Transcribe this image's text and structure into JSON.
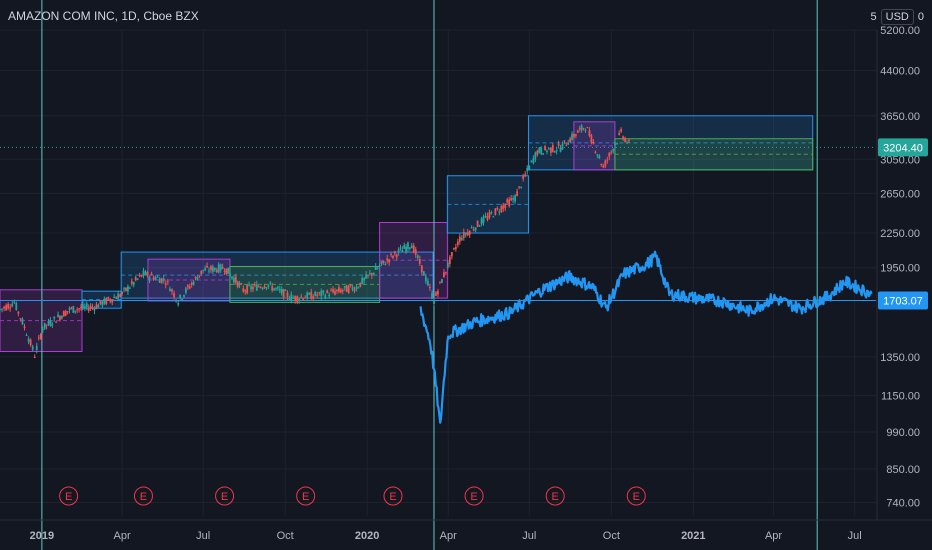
{
  "header": {
    "symbol_title": "AMAZON COM INC, 1D, Cboe BZX"
  },
  "currency": {
    "prefix": "5",
    "code": "USD",
    "suffix": "0"
  },
  "colors": {
    "background": "#131722",
    "axis_text": "#b2b5be",
    "grid": "#1e222d",
    "vline": "#5fc8c4",
    "blue_series": "#2196f3",
    "candle_up": "#26a69a",
    "candle_down": "#ef5350",
    "box_blue": "#2196f3",
    "box_purple": "#b03cd6",
    "box_green": "#4caf50",
    "box_red": "#f23645",
    "price_badge": "#26a69a",
    "level_badge": "#2196f3"
  },
  "chart_data": {
    "type": "line",
    "title": "AMAZON COM INC, 1D, Cboe BZX",
    "y_scale": "log",
    "ylim": [
      700,
      5200
    ],
    "y_ticks": [
      "5200.00",
      "4400.00",
      "3650.00",
      "3050.00",
      "2650.00",
      "2250.00",
      "1950.00",
      "1350.00",
      "1150.00",
      "990.00",
      "850.00",
      "740.00"
    ],
    "y_tick_values": [
      5200,
      4400,
      3650,
      3050,
      2650,
      2250,
      1950,
      1350,
      1150,
      990,
      850,
      740
    ],
    "x_ticks": [
      "2019",
      "Apr",
      "Jul",
      "Oct",
      "2020",
      "Apr",
      "Jul",
      "Oct",
      "2021",
      "Apr",
      "Jul"
    ],
    "x_tick_dates": [
      "2019-01-01",
      "2019-04-01",
      "2019-07-01",
      "2019-10-01",
      "2020-01-01",
      "2020-04-01",
      "2020-07-01",
      "2020-10-01",
      "2021-01-01",
      "2021-04-01",
      "2021-07-01"
    ],
    "xlim": [
      "2018-11-15",
      "2021-07-25"
    ],
    "earnings_marker_label": "E",
    "earnings_dates": [
      "2019-01-31",
      "2019-04-25",
      "2019-07-25",
      "2019-10-24",
      "2020-01-30",
      "2020-04-30",
      "2020-07-30",
      "2020-10-29"
    ],
    "vertical_lines": [
      "2019-01-01",
      "2020-03-16",
      "2021-05-20"
    ],
    "price_labels": [
      {
        "value": 3204.4,
        "text": "3204.40",
        "kind": "last_price"
      },
      {
        "value": 1703.07,
        "text": "1703.07",
        "kind": "horizontal_level"
      }
    ],
    "horizontal_level": 1703.07,
    "series": [
      {
        "kind": "candlestick",
        "points": [
          [
            "2018-11-15",
            1640
          ],
          [
            "2018-12-01",
            1690
          ],
          [
            "2018-12-24",
            1360
          ],
          [
            "2019-01-02",
            1520
          ],
          [
            "2019-02-01",
            1640
          ],
          [
            "2019-03-01",
            1660
          ],
          [
            "2019-04-01",
            1750
          ],
          [
            "2019-04-25",
            1900
          ],
          [
            "2019-05-20",
            1850
          ],
          [
            "2019-06-03",
            1700
          ],
          [
            "2019-07-01",
            1930
          ],
          [
            "2019-07-25",
            1950
          ],
          [
            "2019-08-15",
            1780
          ],
          [
            "2019-09-10",
            1820
          ],
          [
            "2019-10-10",
            1720
          ],
          [
            "2019-11-15",
            1750
          ],
          [
            "2019-12-20",
            1800
          ],
          [
            "2020-01-30",
            2050
          ],
          [
            "2020-02-20",
            2150
          ],
          [
            "2020-03-16",
            1700
          ],
          [
            "2020-04-14",
            2200
          ],
          [
            "2020-05-15",
            2400
          ],
          [
            "2020-06-15",
            2600
          ],
          [
            "2020-07-10",
            3150
          ],
          [
            "2020-08-05",
            3200
          ],
          [
            "2020-09-02",
            3500
          ],
          [
            "2020-09-22",
            2950
          ],
          [
            "2020-10-12",
            3400
          ],
          [
            "2020-10-23",
            3204.4
          ]
        ]
      },
      {
        "kind": "comparison_line",
        "points": [
          [
            "2020-03-01",
            1640
          ],
          [
            "2020-03-12",
            1430
          ],
          [
            "2020-03-23",
            1010
          ],
          [
            "2020-04-01",
            1480
          ],
          [
            "2020-05-01",
            1560
          ],
          [
            "2020-06-10",
            1620
          ],
          [
            "2020-07-15",
            1780
          ],
          [
            "2020-08-15",
            1880
          ],
          [
            "2020-09-10",
            1800
          ],
          [
            "2020-09-25",
            1650
          ],
          [
            "2020-10-15",
            1900
          ],
          [
            "2020-11-10",
            1980
          ],
          [
            "2020-11-20",
            2040
          ],
          [
            "2020-12-05",
            1750
          ],
          [
            "2021-01-05",
            1720
          ],
          [
            "2021-02-01",
            1700
          ],
          [
            "2021-03-05",
            1630
          ],
          [
            "2021-04-01",
            1720
          ],
          [
            "2021-05-01",
            1650
          ],
          [
            "2021-06-01",
            1730
          ],
          [
            "2021-06-20",
            1840
          ],
          [
            "2021-07-20",
            1750
          ]
        ]
      }
    ],
    "boxes": [
      {
        "color": "purple",
        "x0": "2018-11-15",
        "x1": "2019-02-15",
        "y0": 1380,
        "y1": 1780
      },
      {
        "color": "blue",
        "x0": "2019-02-15",
        "x1": "2019-03-31",
        "y0": 1650,
        "y1": 1770
      },
      {
        "color": "blue",
        "x0": "2019-03-31",
        "x1": "2020-03-15",
        "y0": 1720,
        "y1": 2080
      },
      {
        "color": "purple",
        "x0": "2019-04-30",
        "x1": "2019-07-31",
        "y0": 1700,
        "y1": 2020
      },
      {
        "color": "green",
        "x0": "2019-07-31",
        "x1": "2020-01-15",
        "y0": 1690,
        "y1": 1960
      },
      {
        "color": "purple",
        "x0": "2020-01-15",
        "x1": "2020-03-31",
        "y0": 1720,
        "y1": 2350
      },
      {
        "color": "blue",
        "x0": "2020-03-31",
        "x1": "2020-06-30",
        "y0": 2250,
        "y1": 2850
      },
      {
        "color": "blue",
        "x0": "2020-06-30",
        "x1": "2021-05-15",
        "y0": 2920,
        "y1": 3650
      },
      {
        "color": "purple",
        "x0": "2020-08-20",
        "x1": "2020-10-05",
        "y0": 2920,
        "y1": 3560
      },
      {
        "color": "green",
        "x0": "2020-10-05",
        "x1": "2021-05-15",
        "y0": 2920,
        "y1": 3320
      }
    ]
  }
}
